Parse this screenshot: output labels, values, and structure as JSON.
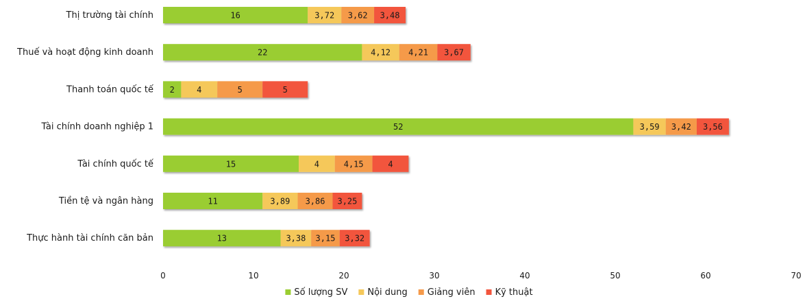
{
  "chart_data": {
    "type": "bar",
    "orientation": "horizontal",
    "stacked": true,
    "categories": [
      "Thị trường tài chính",
      "Thuế và hoạt động kinh doanh",
      "Thanh toán quốc tế",
      "Tài chính doanh nghiệp 1",
      "Tài chính quốc tế",
      "Tiền tệ và ngân hàng",
      "Thực hành tài chính căn bản"
    ],
    "series": [
      {
        "name": "Số lượng SV",
        "color": "#9ACD32",
        "values": [
          16,
          22,
          2,
          52,
          15,
          11,
          13
        ],
        "labels": [
          "16",
          "22",
          "2",
          "52",
          "15",
          "11",
          "13"
        ]
      },
      {
        "name": "Nội dung",
        "color": "#F5C85A",
        "values": [
          3.72,
          4.12,
          4,
          3.59,
          4,
          3.89,
          3.38
        ],
        "labels": [
          "3,72",
          "4,12",
          "4",
          "3,59",
          "4",
          "3,89",
          "3,38"
        ]
      },
      {
        "name": "Giảng viên",
        "color": "#F59A4A",
        "values": [
          3.62,
          4.21,
          5,
          3.42,
          4.15,
          3.86,
          3.15
        ],
        "labels": [
          "3,62",
          "4,21",
          "5",
          "3,42",
          "4,15",
          "3,86",
          "3,15"
        ]
      },
      {
        "name": "Kỹ thuật",
        "color": "#F2553D",
        "values": [
          3.48,
          3.67,
          5,
          3.56,
          4,
          3.25,
          3.32
        ],
        "labels": [
          "3,48",
          "3,67",
          "5",
          "3,56",
          "4",
          "3,25",
          "3,32"
        ]
      }
    ],
    "xlim": [
      0,
      70
    ],
    "xticks": [
      0,
      10,
      20,
      30,
      40,
      50,
      60,
      70
    ],
    "xtick_labels": [
      "0",
      "10",
      "20",
      "30",
      "40",
      "50",
      "60",
      "70"
    ],
    "title": "",
    "xlabel": "",
    "ylabel": "",
    "grid": false,
    "legend": "bottom"
  }
}
